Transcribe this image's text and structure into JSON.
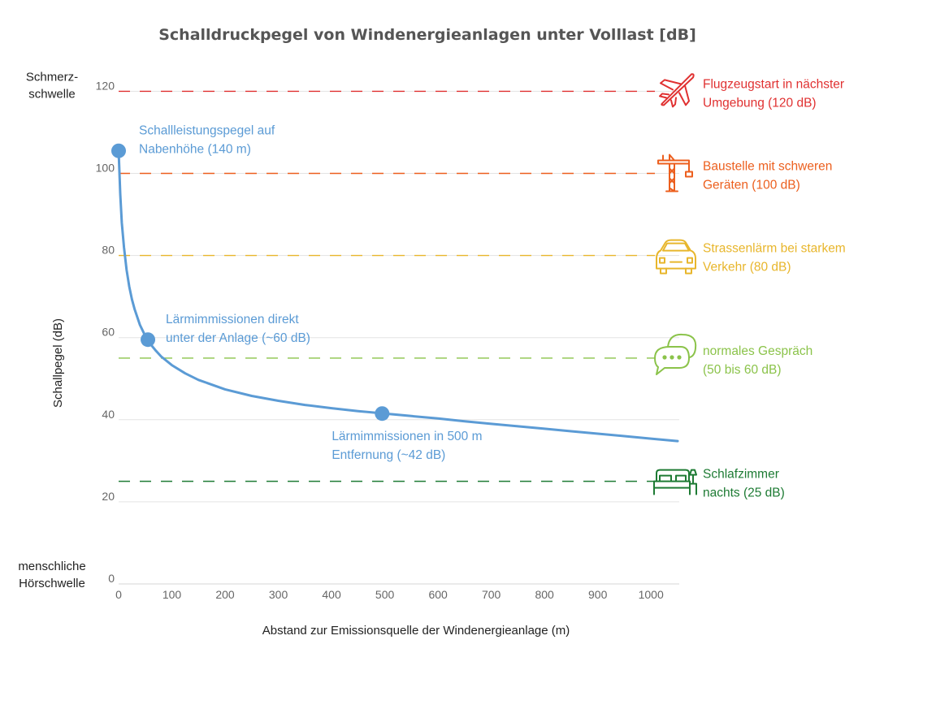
{
  "chart_data": {
    "type": "line",
    "title": "Schalldruckpegel von Windenergieanlagen unter Volllast [dB]",
    "xlabel": "Abstand zur Emissionsquelle der Windenergieanlage (m)",
    "ylabel": "Schallpegel (dB)",
    "xlim": [
      0,
      1050
    ],
    "ylim": [
      0,
      120
    ],
    "x_ticks": [
      0,
      100,
      200,
      300,
      400,
      500,
      600,
      700,
      800,
      900,
      1000
    ],
    "y_ticks": [
      0,
      20,
      40,
      60,
      80,
      100,
      120
    ],
    "grid": true,
    "series": [
      {
        "name": "Schalldruckpegel",
        "color": "#5b9bd5",
        "x": [
          0,
          3,
          6,
          10,
          15,
          20,
          25,
          30,
          40,
          50,
          60,
          70,
          80,
          100,
          125,
          150,
          200,
          250,
          300,
          350,
          400,
          450,
          500,
          550,
          600,
          650,
          700,
          750,
          800,
          850,
          900,
          950,
          1000,
          1050
        ],
        "y": [
          105.5,
          95,
          88,
          82,
          76.5,
          72.4,
          69.3,
          66.9,
          63.1,
          60.4,
          58.4,
          56.8,
          55.4,
          53.3,
          51.3,
          49.7,
          47.4,
          45.8,
          44.6,
          43.6,
          42.8,
          42.1,
          41.5,
          40.9,
          40.3,
          39.6,
          39.0,
          38.4,
          37.8,
          37.2,
          36.6,
          36.0,
          35.4,
          34.8
        ]
      }
    ],
    "points": [
      {
        "x": 0,
        "y": 105.5,
        "label_lines": [
          "Schallleistungspegel auf",
          "Nabenhöhe (140 m)"
        ]
      },
      {
        "x": 55,
        "y": 59.5,
        "label_lines": [
          "Lärmimmissionen direkt",
          "unter der Anlage (~60 dB)"
        ]
      },
      {
        "x": 495,
        "y": 41.5,
        "label_lines": [
          "Lärmimmissionen in 500 m",
          "Entfernung (~42 dB)"
        ]
      }
    ],
    "reference_lines": [
      {
        "y": 120,
        "color": "#e03131",
        "icon": "airplane-icon",
        "label_lines": [
          "Flugzeugstart in nächster",
          "Umgebung (120 dB)"
        ]
      },
      {
        "y": 100,
        "color": "#ec5f1e",
        "icon": "crane-icon",
        "label_lines": [
          "Baustelle mit schweren",
          "Geräten (100 dB)"
        ]
      },
      {
        "y": 80,
        "color": "#e8b62c",
        "icon": "car-icon",
        "label_lines": [
          "Strassenlärm bei starkem",
          "Verkehr (80 dB)"
        ]
      },
      {
        "y": 55,
        "color": "#8bc34a",
        "icon": "speech-bubble-icon",
        "label_lines": [
          "normales Gespräch",
          "(50 bis 60 dB)"
        ]
      },
      {
        "y": 25,
        "color": "#1e7b34",
        "icon": "bed-icon",
        "label_lines": [
          "Schlafzimmer",
          "nachts (25 dB)"
        ]
      }
    ],
    "side_labels": [
      {
        "y": 120,
        "lines": [
          "Schmerz-",
          "schwelle"
        ]
      },
      {
        "y": 0,
        "lines": [
          "menschliche",
          "Hörschwelle"
        ]
      }
    ]
  }
}
